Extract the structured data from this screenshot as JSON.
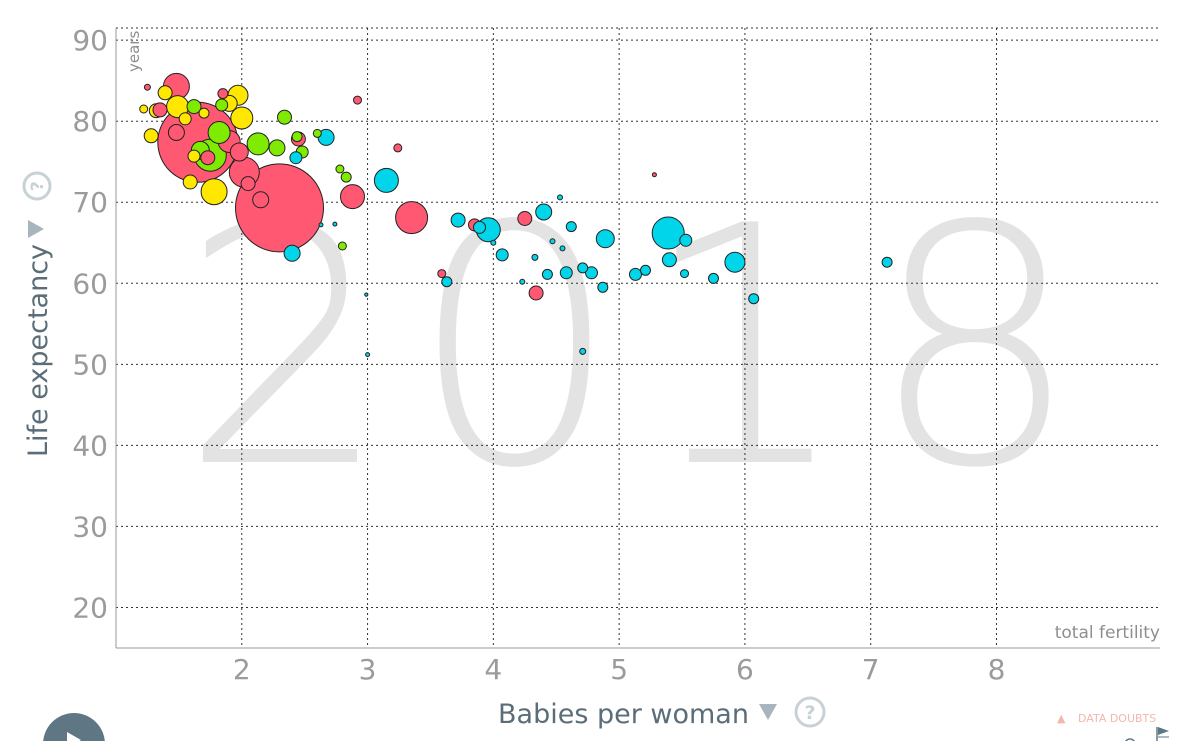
{
  "chart_data": {
    "type": "scatter",
    "title": "",
    "year": "2018",
    "xlabel": "Babies per woman",
    "ylabel": "Life expectancy",
    "xunit": "total fertility",
    "yunit": "years",
    "xlim": [
      1.0,
      9.3
    ],
    "ylim": [
      15,
      91.5
    ],
    "xticks": [
      2,
      3,
      4,
      5,
      6,
      7,
      8
    ],
    "yticks": [
      20,
      30,
      40,
      50,
      60,
      70,
      80,
      90
    ],
    "grid": true,
    "colors": {
      "red": "#ff5872",
      "cyan": "#00d5e9",
      "green": "#7feb00",
      "yellow": "#ffe700"
    },
    "points": [
      {
        "x": 2.3,
        "y": 69.3,
        "s": 44,
        "c": "red"
      },
      {
        "x": 1.65,
        "y": 77.4,
        "s": 40,
        "c": "red"
      },
      {
        "x": 1.75,
        "y": 75.8,
        "s": 16,
        "c": "green"
      },
      {
        "x": 1.48,
        "y": 84.3,
        "s": 13,
        "c": "red"
      },
      {
        "x": 2.02,
        "y": 73.7,
        "s": 15,
        "c": "red"
      },
      {
        "x": 1.9,
        "y": 77.5,
        "s": 11,
        "c": "red"
      },
      {
        "x": 1.98,
        "y": 76.2,
        "s": 9,
        "c": "red"
      },
      {
        "x": 1.78,
        "y": 71.3,
        "s": 13,
        "c": "yellow"
      },
      {
        "x": 1.97,
        "y": 83.2,
        "s": 10,
        "c": "yellow"
      },
      {
        "x": 1.49,
        "y": 81.8,
        "s": 11,
        "c": "yellow"
      },
      {
        "x": 1.9,
        "y": 82.2,
        "s": 8,
        "c": "yellow"
      },
      {
        "x": 2.0,
        "y": 80.4,
        "s": 11,
        "c": "yellow"
      },
      {
        "x": 1.32,
        "y": 81.3,
        "s": 7,
        "c": "yellow"
      },
      {
        "x": 1.39,
        "y": 83.5,
        "s": 7,
        "c": "yellow"
      },
      {
        "x": 1.28,
        "y": 78.2,
        "s": 7,
        "c": "yellow"
      },
      {
        "x": 1.59,
        "y": 72.5,
        "s": 7,
        "c": "yellow"
      },
      {
        "x": 1.62,
        "y": 75.7,
        "s": 6,
        "c": "yellow"
      },
      {
        "x": 1.55,
        "y": 80.3,
        "s": 6,
        "c": "yellow"
      },
      {
        "x": 1.7,
        "y": 81.0,
        "s": 5,
        "c": "yellow"
      },
      {
        "x": 1.22,
        "y": 81.5,
        "s": 4,
        "c": "yellow"
      },
      {
        "x": 1.82,
        "y": 78.6,
        "s": 11,
        "c": "green"
      },
      {
        "x": 2.13,
        "y": 77.2,
        "s": 11,
        "c": "green"
      },
      {
        "x": 1.67,
        "y": 76.4,
        "s": 9,
        "c": "green"
      },
      {
        "x": 2.28,
        "y": 76.7,
        "s": 8,
        "c": "green"
      },
      {
        "x": 2.34,
        "y": 80.5,
        "s": 7,
        "c": "green"
      },
      {
        "x": 1.62,
        "y": 81.8,
        "s": 7,
        "c": "green"
      },
      {
        "x": 1.84,
        "y": 82.0,
        "s": 6,
        "c": "green"
      },
      {
        "x": 2.48,
        "y": 76.2,
        "s": 6,
        "c": "green"
      },
      {
        "x": 2.44,
        "y": 78.1,
        "s": 5,
        "c": "green"
      },
      {
        "x": 2.83,
        "y": 73.1,
        "s": 5,
        "c": "green"
      },
      {
        "x": 2.78,
        "y": 74.1,
        "s": 4,
        "c": "green"
      },
      {
        "x": 2.8,
        "y": 64.6,
        "s": 4,
        "c": "green"
      },
      {
        "x": 2.6,
        "y": 78.5,
        "s": 4,
        "c": "green"
      },
      {
        "x": 1.48,
        "y": 78.6,
        "s": 8,
        "c": "red"
      },
      {
        "x": 1.35,
        "y": 81.4,
        "s": 7,
        "c": "red"
      },
      {
        "x": 1.73,
        "y": 75.5,
        "s": 7,
        "c": "red"
      },
      {
        "x": 2.05,
        "y": 72.3,
        "s": 7,
        "c": "red"
      },
      {
        "x": 2.15,
        "y": 70.3,
        "s": 8,
        "c": "red"
      },
      {
        "x": 2.45,
        "y": 77.8,
        "s": 7,
        "c": "red"
      },
      {
        "x": 2.88,
        "y": 70.7,
        "s": 12,
        "c": "red"
      },
      {
        "x": 3.35,
        "y": 68.1,
        "s": 16,
        "c": "red"
      },
      {
        "x": 2.92,
        "y": 82.6,
        "s": 4,
        "c": "red"
      },
      {
        "x": 3.24,
        "y": 76.7,
        "s": 4,
        "c": "red"
      },
      {
        "x": 3.85,
        "y": 67.2,
        "s": 6,
        "c": "red"
      },
      {
        "x": 4.25,
        "y": 68.0,
        "s": 7,
        "c": "red"
      },
      {
        "x": 4.34,
        "y": 58.8,
        "s": 7,
        "c": "red"
      },
      {
        "x": 3.59,
        "y": 61.2,
        "s": 4,
        "c": "red"
      },
      {
        "x": 1.85,
        "y": 83.4,
        "s": 5,
        "c": "red"
      },
      {
        "x": 1.25,
        "y": 84.2,
        "s": 3,
        "c": "red"
      },
      {
        "x": 5.28,
        "y": 73.4,
        "s": 2,
        "c": "red"
      },
      {
        "x": 3.15,
        "y": 72.7,
        "s": 12,
        "c": "cyan"
      },
      {
        "x": 2.67,
        "y": 78.0,
        "s": 8,
        "c": "cyan"
      },
      {
        "x": 2.4,
        "y": 63.7,
        "s": 8,
        "c": "cyan"
      },
      {
        "x": 2.43,
        "y": 75.5,
        "s": 6,
        "c": "cyan"
      },
      {
        "x": 3.96,
        "y": 66.6,
        "s": 12,
        "c": "cyan"
      },
      {
        "x": 3.72,
        "y": 67.8,
        "s": 7,
        "c": "cyan"
      },
      {
        "x": 3.89,
        "y": 66.9,
        "s": 6,
        "c": "cyan"
      },
      {
        "x": 4.07,
        "y": 63.5,
        "s": 6,
        "c": "cyan"
      },
      {
        "x": 3.63,
        "y": 60.2,
        "s": 5,
        "c": "cyan"
      },
      {
        "x": 4.4,
        "y": 68.8,
        "s": 8,
        "c": "cyan"
      },
      {
        "x": 4.43,
        "y": 61.1,
        "s": 5,
        "c": "cyan"
      },
      {
        "x": 4.58,
        "y": 61.3,
        "s": 6,
        "c": "cyan"
      },
      {
        "x": 4.71,
        "y": 61.9,
        "s": 5,
        "c": "cyan"
      },
      {
        "x": 4.78,
        "y": 61.3,
        "s": 6,
        "c": "cyan"
      },
      {
        "x": 4.87,
        "y": 59.5,
        "s": 5,
        "c": "cyan"
      },
      {
        "x": 4.89,
        "y": 65.5,
        "s": 9,
        "c": "cyan"
      },
      {
        "x": 4.62,
        "y": 67.0,
        "s": 5,
        "c": "cyan"
      },
      {
        "x": 5.39,
        "y": 66.2,
        "s": 16,
        "c": "cyan"
      },
      {
        "x": 5.53,
        "y": 65.3,
        "s": 6,
        "c": "cyan"
      },
      {
        "x": 5.4,
        "y": 62.9,
        "s": 7,
        "c": "cyan"
      },
      {
        "x": 5.21,
        "y": 61.6,
        "s": 5,
        "c": "cyan"
      },
      {
        "x": 5.13,
        "y": 61.1,
        "s": 6,
        "c": "cyan"
      },
      {
        "x": 5.52,
        "y": 61.2,
        "s": 4,
        "c": "cyan"
      },
      {
        "x": 5.92,
        "y": 62.6,
        "s": 10,
        "c": "cyan"
      },
      {
        "x": 5.75,
        "y": 60.6,
        "s": 5,
        "c": "cyan"
      },
      {
        "x": 6.07,
        "y": 58.1,
        "s": 5,
        "c": "cyan"
      },
      {
        "x": 7.13,
        "y": 62.6,
        "s": 5,
        "c": "cyan"
      },
      {
        "x": 4.71,
        "y": 51.6,
        "s": 3,
        "c": "cyan"
      },
      {
        "x": 4.33,
        "y": 63.2,
        "s": 3,
        "c": "cyan"
      },
      {
        "x": 4.55,
        "y": 64.3,
        "s": 2.5,
        "c": "cyan"
      },
      {
        "x": 4.53,
        "y": 70.6,
        "s": 2.5,
        "c": "cyan"
      },
      {
        "x": 4.47,
        "y": 65.2,
        "s": 2.5,
        "c": "cyan"
      },
      {
        "x": 4.23,
        "y": 60.2,
        "s": 2.5,
        "c": "cyan"
      },
      {
        "x": 4.0,
        "y": 65.0,
        "s": 2.5,
        "c": "cyan"
      },
      {
        "x": 3.0,
        "y": 51.2,
        "s": 2,
        "c": "cyan"
      },
      {
        "x": 2.99,
        "y": 58.6,
        "s": 1.6,
        "c": "cyan"
      },
      {
        "x": 2.63,
        "y": 67.2,
        "s": 2,
        "c": "cyan"
      },
      {
        "x": 2.74,
        "y": 67.3,
        "s": 2,
        "c": "cyan"
      }
    ]
  },
  "ui": {
    "help_symbol": "?",
    "dropdown_symbol": "▼",
    "data_doubts": "DATA DOUBTS",
    "warning_symbol": "▲"
  }
}
